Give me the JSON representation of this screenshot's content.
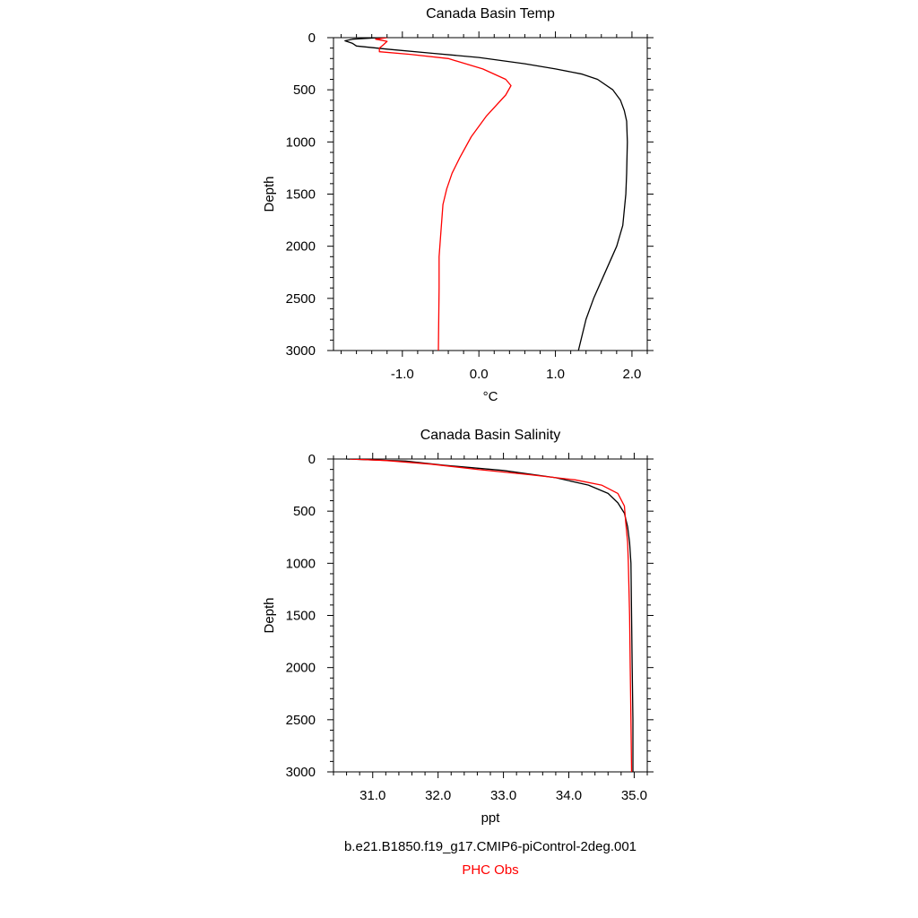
{
  "chart_data": [
    {
      "type": "line",
      "title": "Canada Basin Temp",
      "xlabel": "°C",
      "ylabel": "Depth",
      "xlim": [
        -1.9,
        2.2
      ],
      "ylim": [
        3000,
        0
      ],
      "xticks": [
        -1.0,
        0.0,
        1.0,
        2.0
      ],
      "xtick_labels": [
        "-1.0",
        "0.0",
        "1.0",
        "2.0"
      ],
      "yticks": [
        0,
        500,
        1000,
        1500,
        2000,
        2500,
        3000
      ],
      "ytick_labels": [
        "0",
        "500",
        "1000",
        "1500",
        "2000",
        "2500",
        "3000"
      ],
      "grid": false,
      "series": [
        {
          "name": "b.e21.B1850.f19_g17.CMIP6-piControl-2deg.001",
          "color": "#000000",
          "points": [
            [
              -1.3,
              0
            ],
            [
              -1.65,
              15
            ],
            [
              -1.75,
              30
            ],
            [
              -1.65,
              55
            ],
            [
              -1.6,
              80
            ],
            [
              -1.2,
              110
            ],
            [
              -0.6,
              150
            ],
            [
              0.0,
              190
            ],
            [
              0.6,
              250
            ],
            [
              1.0,
              300
            ],
            [
              1.35,
              350
            ],
            [
              1.55,
              400
            ],
            [
              1.75,
              500
            ],
            [
              1.85,
              600
            ],
            [
              1.9,
              700
            ],
            [
              1.93,
              800
            ],
            [
              1.94,
              1000
            ],
            [
              1.93,
              1300
            ],
            [
              1.92,
              1500
            ],
            [
              1.88,
              1800
            ],
            [
              1.8,
              2000
            ],
            [
              1.65,
              2250
            ],
            [
              1.5,
              2500
            ],
            [
              1.4,
              2700
            ],
            [
              1.3,
              3000
            ]
          ]
        },
        {
          "name": "PHC Obs",
          "color": "#ff0000",
          "points": [
            [
              -1.2,
              0
            ],
            [
              -1.35,
              15
            ],
            [
              -1.2,
              35
            ],
            [
              -1.25,
              70
            ],
            [
              -1.3,
              100
            ],
            [
              -1.3,
              135
            ],
            [
              -0.9,
              160
            ],
            [
              -0.4,
              200
            ],
            [
              0.05,
              300
            ],
            [
              0.35,
              400
            ],
            [
              0.42,
              460
            ],
            [
              0.35,
              550
            ],
            [
              0.1,
              750
            ],
            [
              -0.1,
              950
            ],
            [
              -0.25,
              1150
            ],
            [
              -0.35,
              1300
            ],
            [
              -0.42,
              1450
            ],
            [
              -0.47,
              1600
            ],
            [
              -0.5,
              1900
            ],
            [
              -0.52,
              2100
            ],
            [
              -0.52,
              2400
            ],
            [
              -0.53,
              3000
            ]
          ]
        }
      ]
    },
    {
      "type": "line",
      "title": "Canada Basin Salinity",
      "xlabel": "ppt",
      "ylabel": "Depth",
      "xlim": [
        30.4,
        35.2
      ],
      "ylim": [
        3000,
        0
      ],
      "xticks": [
        31.0,
        32.0,
        33.0,
        34.0,
        35.0
      ],
      "xtick_labels": [
        "31.0",
        "32.0",
        "33.0",
        "34.0",
        "35.0"
      ],
      "yticks": [
        0,
        500,
        1000,
        1500,
        2000,
        2500,
        3000
      ],
      "ytick_labels": [
        "0",
        "500",
        "1000",
        "1500",
        "2000",
        "2500",
        "3000"
      ],
      "grid": false,
      "series": [
        {
          "name": "b.e21.B1850.f19_g17.CMIP6-piControl-2deg.001",
          "color": "#000000",
          "points": [
            [
              30.6,
              0
            ],
            [
              31.5,
              20
            ],
            [
              32.1,
              60
            ],
            [
              33.0,
              110
            ],
            [
              33.8,
              180
            ],
            [
              34.3,
              250
            ],
            [
              34.6,
              330
            ],
            [
              34.75,
              420
            ],
            [
              34.85,
              520
            ],
            [
              34.9,
              650
            ],
            [
              34.93,
              800
            ],
            [
              34.95,
              1000
            ],
            [
              34.96,
              1500
            ],
            [
              34.97,
              2000
            ],
            [
              34.98,
              2500
            ],
            [
              34.98,
              3000
            ]
          ]
        },
        {
          "name": "PHC Obs",
          "color": "#ff0000",
          "points": [
            [
              30.65,
              0
            ],
            [
              31.2,
              15
            ],
            [
              31.9,
              50
            ],
            [
              32.6,
              100
            ],
            [
              33.4,
              150
            ],
            [
              34.1,
              200
            ],
            [
              34.5,
              250
            ],
            [
              34.75,
              330
            ],
            [
              34.85,
              450
            ],
            [
              34.87,
              600
            ],
            [
              34.9,
              800
            ],
            [
              34.91,
              1000
            ],
            [
              34.93,
              1500
            ],
            [
              34.94,
              2000
            ],
            [
              34.95,
              2500
            ],
            [
              34.96,
              3000
            ]
          ]
        }
      ]
    }
  ],
  "legend": {
    "model_label": "b.e21.B1850.f19_g17.CMIP6-piControl-2deg.001",
    "model_color": "#000000",
    "obs_label": "PHC Obs",
    "obs_color": "#ff0000"
  }
}
